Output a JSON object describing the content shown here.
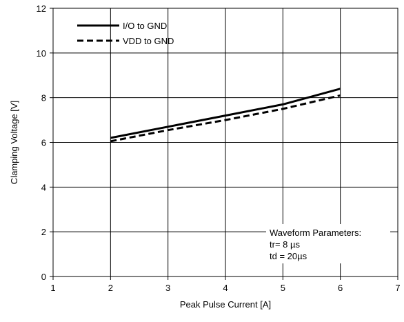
{
  "chart_data": {
    "type": "line",
    "title": "",
    "xlabel": "Peak Pulse Current [A]",
    "ylabel": "Clamping Voltage [V]",
    "xlim": [
      1,
      7
    ],
    "ylim": [
      0,
      12
    ],
    "xticks": [
      1,
      2,
      3,
      4,
      5,
      6,
      7
    ],
    "yticks": [
      0,
      2,
      4,
      6,
      8,
      10,
      12
    ],
    "grid": true,
    "legend_position": "top-left",
    "series": [
      {
        "name": "I/O to GND",
        "style": "solid",
        "color": "#000000",
        "x": [
          2,
          3,
          4,
          5,
          6
        ],
        "y": [
          6.2,
          6.7,
          7.2,
          7.7,
          8.4
        ]
      },
      {
        "name": "VDD to GND",
        "style": "dashed",
        "color": "#000000",
        "x": [
          2,
          3,
          4,
          5,
          6
        ],
        "y": [
          6.05,
          6.55,
          7.0,
          7.5,
          8.1
        ]
      }
    ],
    "annotation": {
      "lines": [
        "Waveform Parameters:",
        "tr= 8 µs",
        "td = 20µs"
      ]
    }
  }
}
